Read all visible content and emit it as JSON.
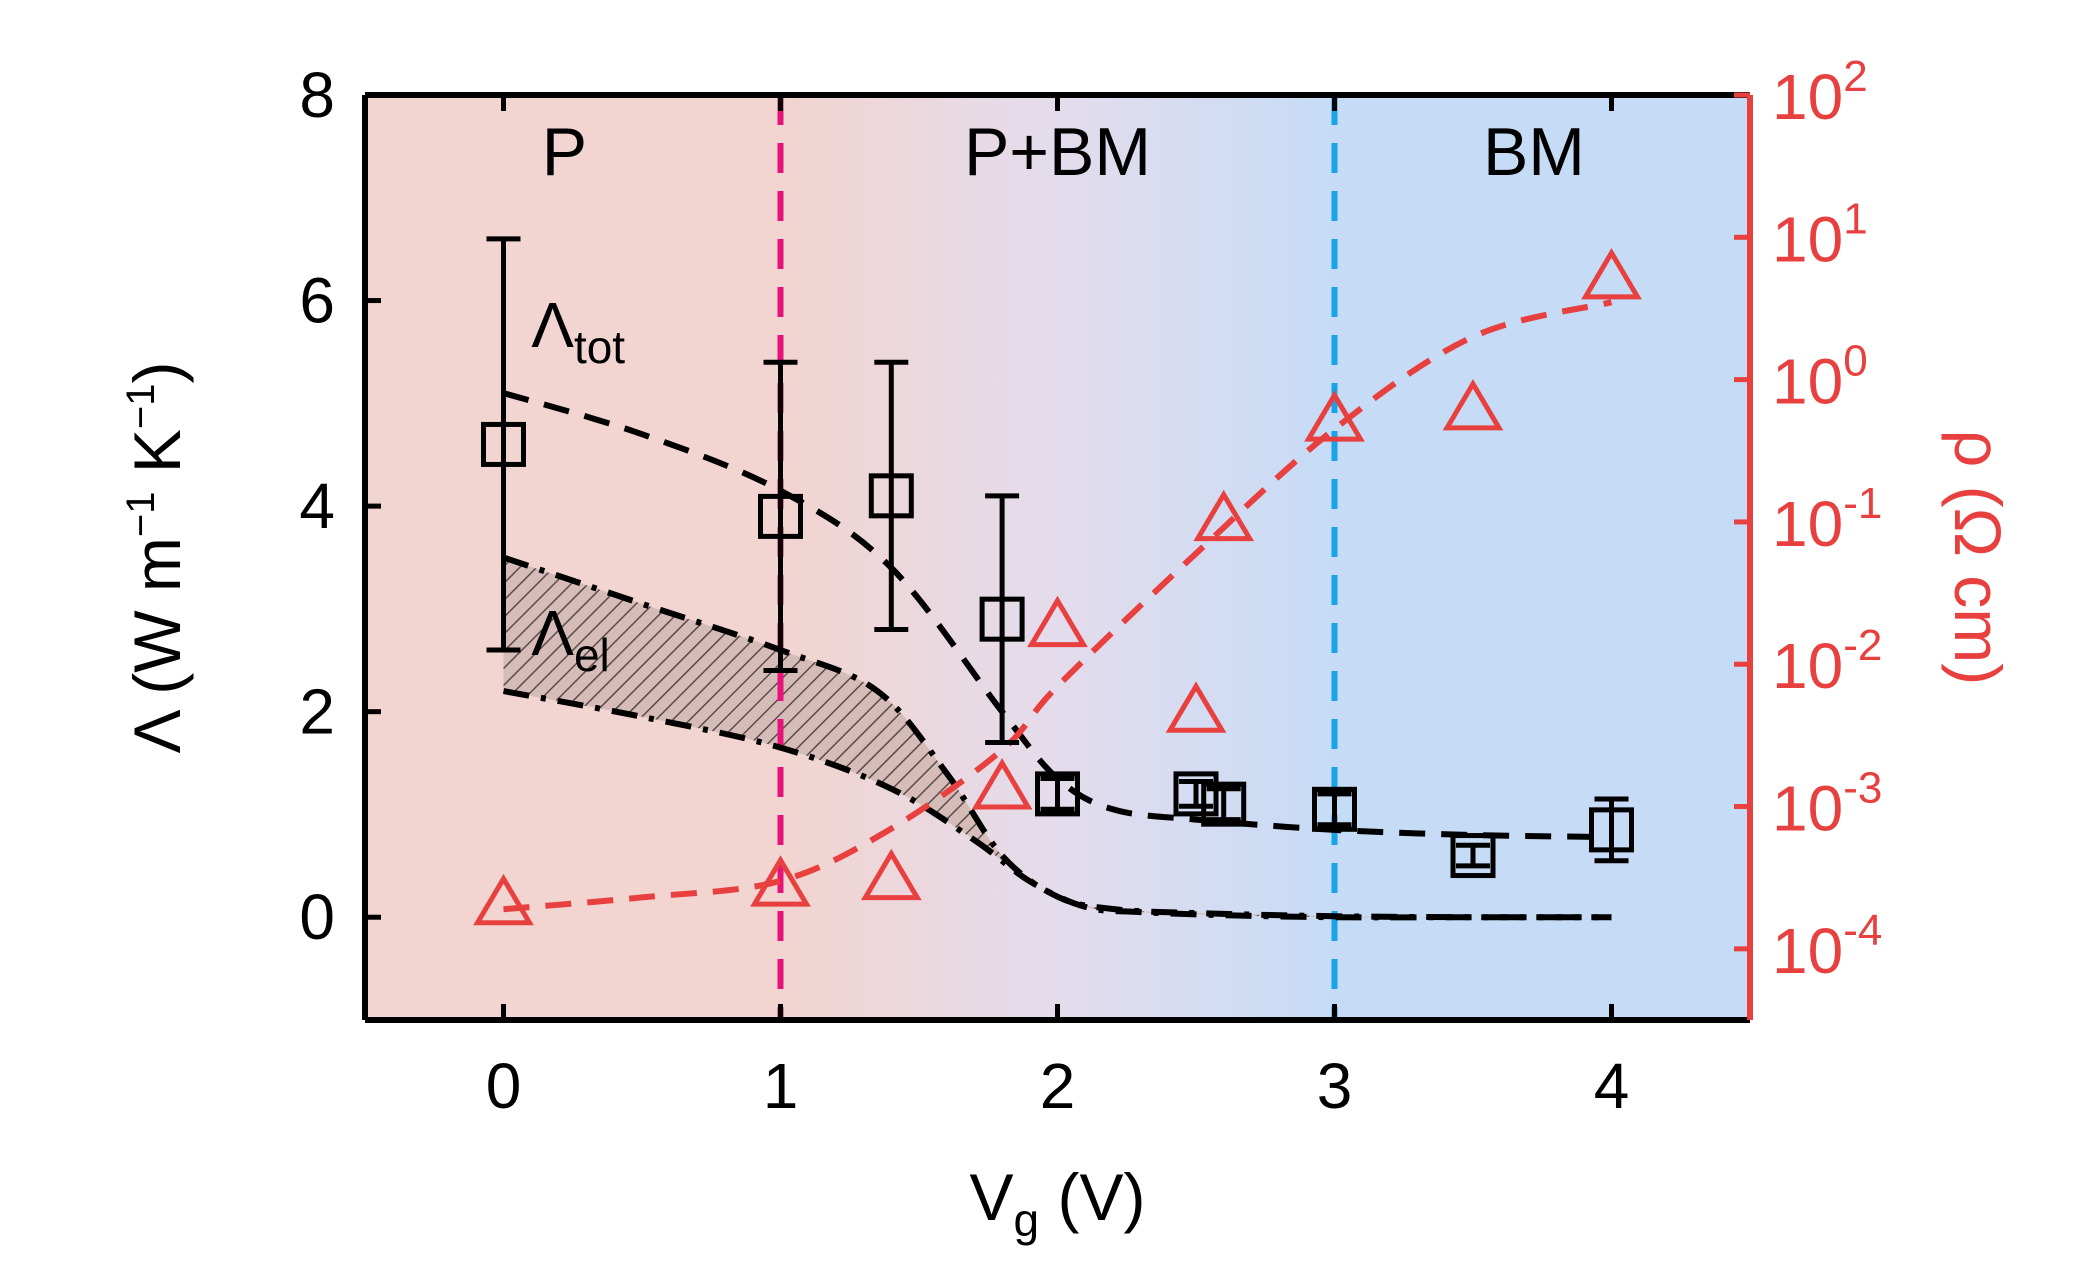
{
  "chart_data": {
    "type": "scatter",
    "xlabel": {
      "main": "V",
      "sub": "g",
      "unit": " (V)"
    },
    "ylabel_left": {
      "prefix": "Λ (W m",
      "sup1": "−1",
      "mid": " K",
      "sup2": "−1",
      "suffix": ")"
    },
    "ylabel_right": "ρ (Ω cm)",
    "xlim": [
      -0.5,
      4.5
    ],
    "ylim_left": [
      -1,
      8
    ],
    "ylim_right_log10": [
      -4.5,
      2
    ],
    "x_ticks": [
      "0",
      "1",
      "2",
      "3",
      "4"
    ],
    "y_left_ticks": [
      "0",
      "2",
      "4",
      "6",
      "8"
    ],
    "y_right_ticks": [
      {
        "base": "10",
        "exp": "-4",
        "value_log10": -4
      },
      {
        "base": "10",
        "exp": "-3",
        "value_log10": -3
      },
      {
        "base": "10",
        "exp": "-2",
        "value_log10": -2
      },
      {
        "base": "10",
        "exp": "-1",
        "value_log10": -1
      },
      {
        "base": "10",
        "exp": "0",
        "value_log10": 0
      },
      {
        "base": "10",
        "exp": "1",
        "value_log10": 1
      },
      {
        "base": "10",
        "exp": "2",
        "value_log10": 2
      }
    ],
    "regions": [
      {
        "label": "P",
        "x_from": -0.5,
        "x_to": 1,
        "label_x": 0.22,
        "color": "#f2d4d0"
      },
      {
        "label": "P+BM",
        "x_from": 1,
        "x_to": 3,
        "label_x": 2.0,
        "color": "#e4dcec"
      },
      {
        "label": "BM",
        "x_from": 3,
        "x_to": 4.5,
        "label_x": 3.72,
        "color": "#c6dcf6"
      }
    ],
    "boundaries": [
      {
        "x": 1,
        "color": "#e8137a"
      },
      {
        "x": 3,
        "color": "#1aa3e8"
      }
    ],
    "series": [
      {
        "name": "Λtot",
        "axis": "left",
        "marker": "square",
        "color": "#000000",
        "points": [
          {
            "x": 0,
            "y": 4.6,
            "err": 2.0
          },
          {
            "x": 1,
            "y": 3.9,
            "err": 1.5
          },
          {
            "x": 1.4,
            "y": 4.1,
            "err": 1.3
          },
          {
            "x": 1.8,
            "y": 2.9,
            "err": 1.2
          },
          {
            "x": 2.0,
            "y": 1.2,
            "err": 0.15
          },
          {
            "x": 2.5,
            "y": 1.2,
            "err": 0.12
          },
          {
            "x": 2.6,
            "y": 1.1,
            "err": 0.15
          },
          {
            "x": 3.0,
            "y": 1.05,
            "err": 0.15
          },
          {
            "x": 3.5,
            "y": 0.6,
            "err": 0.1
          },
          {
            "x": 4.0,
            "y": 0.85,
            "err": 0.3
          }
        ]
      },
      {
        "name": "ρ",
        "axis": "right",
        "marker": "triangle",
        "color": "#e8403f",
        "points": [
          {
            "x": 0,
            "y": 0.0002
          },
          {
            "x": 1,
            "y": 0.00027
          },
          {
            "x": 1.4,
            "y": 0.0003
          },
          {
            "x": 1.8,
            "y": 0.0013
          },
          {
            "x": 2.0,
            "y": 0.018
          },
          {
            "x": 2.5,
            "y": 0.0045
          },
          {
            "x": 2.6,
            "y": 0.1
          },
          {
            "x": 3.0,
            "y": 0.5
          },
          {
            "x": 3.5,
            "y": 0.6
          },
          {
            "x": 4.0,
            "y": 5.0
          }
        ]
      }
    ],
    "fit_curves": [
      {
        "name": "Λtot fit",
        "axis": "left",
        "style": "dashed",
        "color": "#000000",
        "x": [
          0,
          0.5,
          1.0,
          1.4,
          1.8,
          2.0,
          2.2,
          2.5,
          3.0,
          3.5,
          4.0
        ],
        "y": [
          5.1,
          4.7,
          4.15,
          3.4,
          2.0,
          1.35,
          1.05,
          0.95,
          0.85,
          0.8,
          0.78
        ]
      },
      {
        "name": "Λel upper",
        "axis": "left",
        "style": "dashdot",
        "color": "#000000",
        "x": [
          0,
          0.5,
          1.0,
          1.35,
          1.6,
          1.8,
          2.0,
          2.2,
          2.5,
          3.0,
          3.5,
          4.0
        ],
        "y": [
          3.5,
          3.05,
          2.6,
          2.2,
          1.4,
          0.6,
          0.2,
          0.08,
          0.04,
          0.01,
          0.0,
          0.0
        ]
      },
      {
        "name": "Λel lower",
        "axis": "left",
        "style": "dashdot",
        "color": "#000000",
        "x": [
          0,
          0.5,
          1.0,
          1.4,
          1.7,
          1.9,
          2.1,
          2.3,
          2.6,
          3.0,
          3.5,
          4.0
        ],
        "y": [
          2.2,
          1.95,
          1.65,
          1.25,
          0.75,
          0.35,
          0.1,
          0.05,
          0.02,
          0.0,
          0.0,
          0.0
        ]
      },
      {
        "name": "ρ fit",
        "axis": "right",
        "style": "dashed",
        "color": "#e8403f",
        "x": [
          0,
          0.5,
          1.0,
          1.4,
          1.8,
          2.0,
          2.5,
          3.0,
          3.5,
          4.0
        ],
        "y": [
          0.00019,
          0.00023,
          0.0003,
          0.0007,
          0.0025,
          0.007,
          0.06,
          0.45,
          2.0,
          3.5
        ]
      }
    ],
    "annotations": [
      {
        "main": "Λ",
        "sub": "tot",
        "x": 0.1,
        "y": 5.55
      },
      {
        "main": "Λ",
        "sub": "el",
        "x": 0.1,
        "y": 2.55
      }
    ],
    "grid": false,
    "legend": "none"
  }
}
